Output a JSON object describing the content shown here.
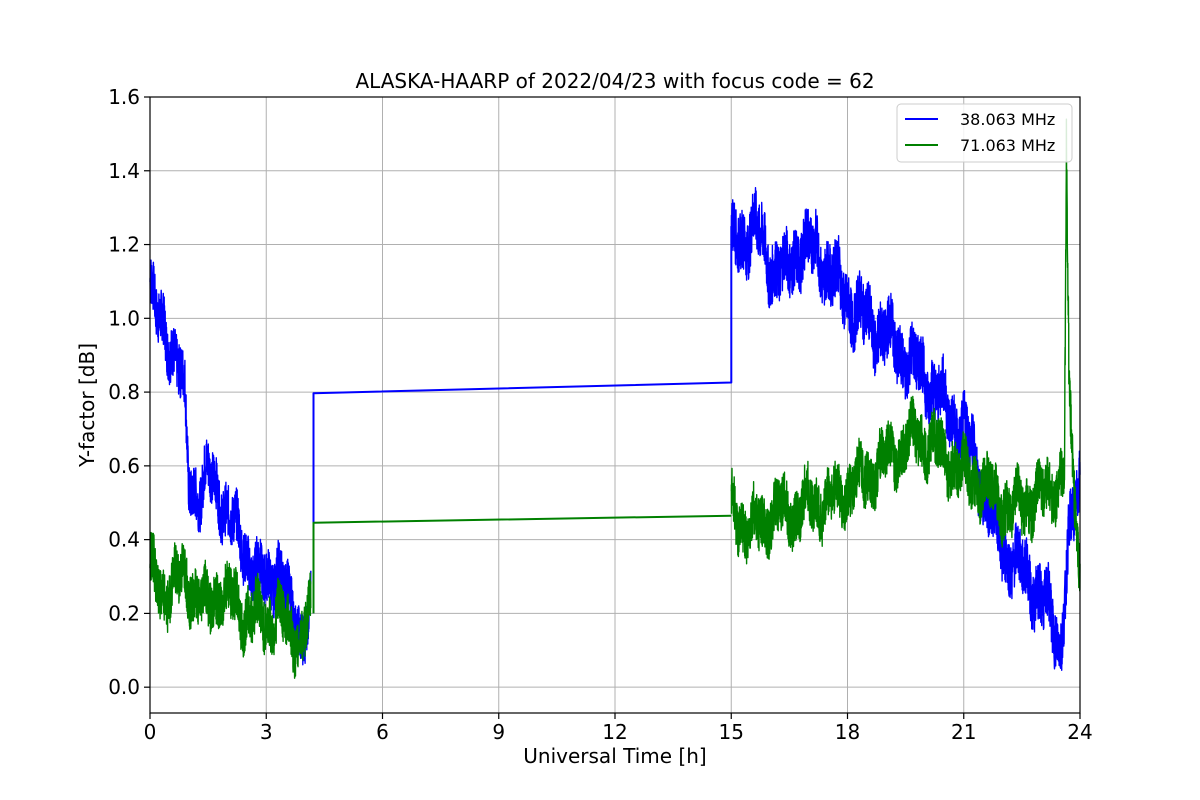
{
  "chart_data": {
    "type": "line",
    "title": "ALASKA-HAARP of 2022/04/23 with focus code = 62",
    "xlabel": "Universal Time [h]",
    "ylabel": "Y-factor [dB]",
    "xlim": [
      0,
      24
    ],
    "ylim": [
      -0.07,
      1.6
    ],
    "xticks": [
      0,
      3,
      6,
      9,
      12,
      15,
      18,
      21,
      24
    ],
    "xtick_labels": [
      "0",
      "3",
      "6",
      "9",
      "12",
      "15",
      "18",
      "21",
      "24"
    ],
    "yticks": [
      0.0,
      0.2,
      0.4,
      0.6,
      0.8,
      1.0,
      1.2,
      1.4,
      1.6
    ],
    "ytick_labels": [
      "0.0",
      "0.2",
      "0.4",
      "0.6",
      "0.8",
      "1.0",
      "1.2",
      "1.4",
      "1.6"
    ],
    "grid": true,
    "legend_position": "top-right",
    "series": [
      {
        "name": "38.063 MHz",
        "color": "#0000ff",
        "segments": [
          {
            "x": [
              0.0,
              0.15,
              0.35,
              0.55,
              0.75,
              0.9,
              1.0,
              1.3,
              1.5,
              1.8,
              2.1,
              2.4,
              2.7,
              3.0,
              3.3,
              3.6,
              3.9,
              4.15
            ],
            "y": [
              1.1,
              1.0,
              0.98,
              0.93,
              0.86,
              0.78,
              0.55,
              0.53,
              0.58,
              0.52,
              0.45,
              0.38,
              0.32,
              0.28,
              0.33,
              0.22,
              0.15,
              0.2
            ],
            "noise": 0.09
          },
          {
            "x": [
              4.22,
              4.22,
              15.0,
              15.0
            ],
            "y": [
              0.2,
              0.797,
              0.826,
              1.25
            ],
            "noise": 0
          },
          {
            "x": [
              15.0,
              15.3,
              15.6,
              16.0,
              16.4,
              16.8,
              17.2,
              17.6,
              18.0,
              18.4,
              18.8,
              19.2,
              19.6,
              20.0,
              20.4,
              20.8,
              21.2,
              21.6,
              22.0,
              22.4,
              22.8,
              23.2,
              23.5,
              23.7,
              24.0
            ],
            "y": [
              1.2,
              1.22,
              1.25,
              1.15,
              1.12,
              1.2,
              1.18,
              1.12,
              1.05,
              1.0,
              0.97,
              0.93,
              0.88,
              0.85,
              0.78,
              0.72,
              0.65,
              0.5,
              0.38,
              0.33,
              0.28,
              0.2,
              0.12,
              0.38,
              0.55
            ],
            "noise": 0.1
          }
        ]
      },
      {
        "name": "71.063 MHz",
        "color": "#008000",
        "segments": [
          {
            "x": [
              0.0,
              0.3,
              0.6,
              0.9,
              1.2,
              1.5,
              1.8,
              2.1,
              2.4,
              2.7,
              3.0,
              3.3,
              3.6,
              3.9,
              4.15
            ],
            "y": [
              0.32,
              0.25,
              0.28,
              0.3,
              0.25,
              0.22,
              0.26,
              0.24,
              0.2,
              0.2,
              0.18,
              0.2,
              0.15,
              0.13,
              0.2
            ],
            "noise": 0.09
          },
          {
            "x": [
              4.22,
              4.22,
              15.0
            ],
            "y": [
              0.2,
              0.446,
              0.465
            ],
            "noise": 0
          },
          {
            "x": [
              15.0,
              15.4,
              15.8,
              16.2,
              16.6,
              17.0,
              17.4,
              17.8,
              18.2,
              18.6,
              19.0,
              19.4,
              19.8,
              20.2,
              20.6,
              21.0,
              21.4,
              21.8,
              22.2,
              22.6,
              23.0,
              23.4,
              23.6,
              23.65,
              23.72,
              24.0
            ],
            "y": [
              0.5,
              0.42,
              0.45,
              0.48,
              0.47,
              0.5,
              0.5,
              0.52,
              0.55,
              0.58,
              0.62,
              0.65,
              0.68,
              0.66,
              0.62,
              0.58,
              0.56,
              0.52,
              0.48,
              0.5,
              0.52,
              0.55,
              0.6,
              1.45,
              0.75,
              0.3
            ],
            "noise": 0.09
          }
        ]
      }
    ]
  }
}
